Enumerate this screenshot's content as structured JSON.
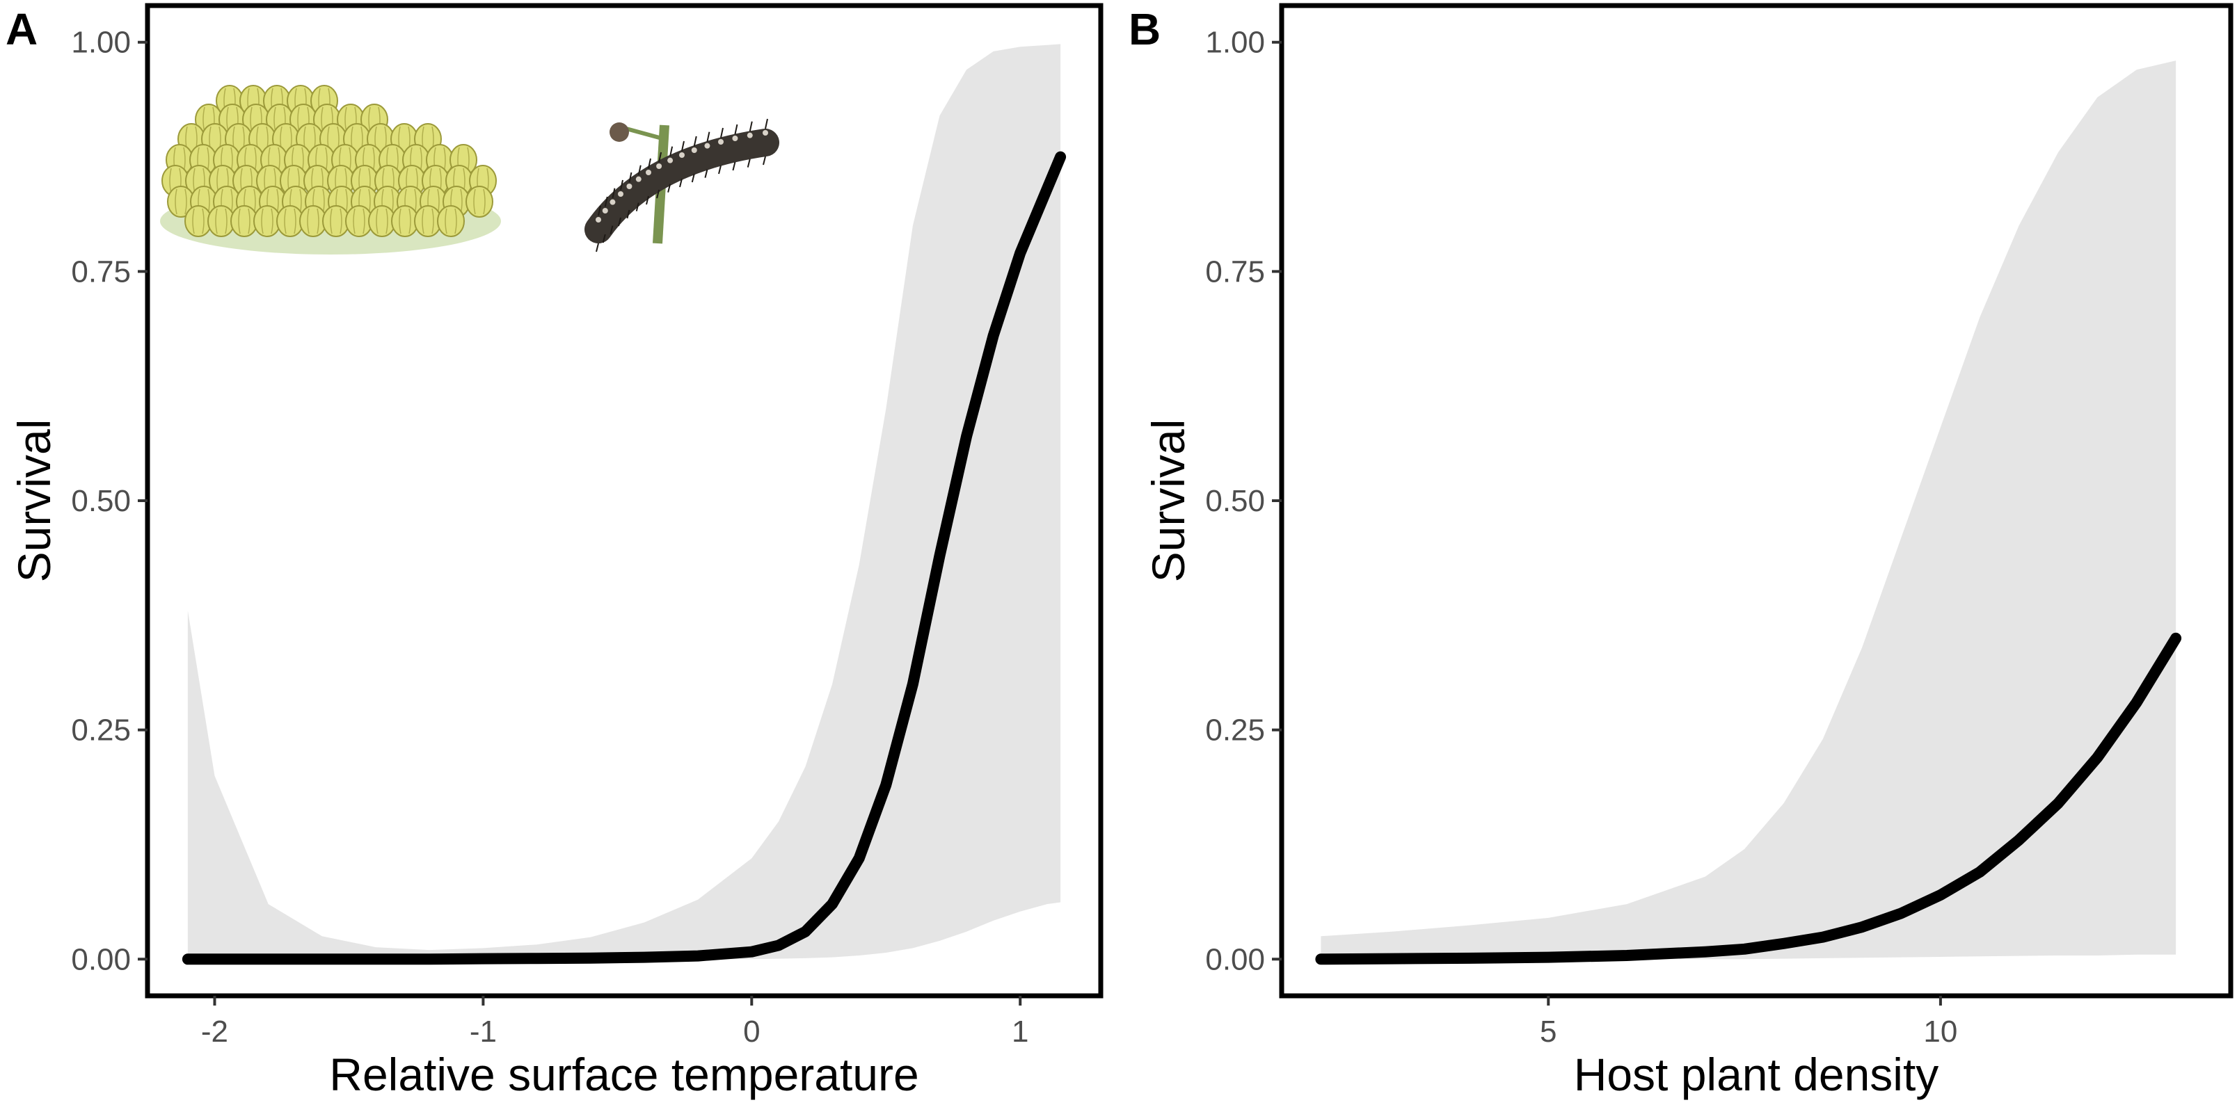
{
  "colors": {
    "curve": "#000000",
    "ribbon": "#e5e5e5",
    "frame": "#000000",
    "tick_text": "#4d4d4d",
    "egg_fill": "#dfe07a",
    "egg_stroke": "#9c9a3a",
    "ground": "#cfe0b0",
    "caterpillar": "#3a3530",
    "stem": "#7a9450"
  },
  "icons": [
    "egg-cluster-illustration",
    "caterpillar-illustration"
  ],
  "chart_data": [
    {
      "type": "line",
      "panel_label": "A",
      "title": "",
      "xlabel": "Relative surface temperature",
      "ylabel": "Survival",
      "xlim": [
        -2.25,
        1.3
      ],
      "ylim": [
        -0.04,
        1.04
      ],
      "x_ticks": [
        -2,
        -1,
        0,
        1
      ],
      "x_tick_labels": [
        "-2",
        "-1",
        "0",
        "1"
      ],
      "y_ticks": [
        0,
        0.25,
        0.5,
        0.75,
        1
      ],
      "y_tick_labels": [
        "0.00",
        "0.25",
        "0.50",
        "0.75",
        "1.00"
      ],
      "grid": false,
      "series": [
        {
          "x": [
            -2.1,
            -2.0,
            -1.8,
            -1.6,
            -1.4,
            -1.2,
            -1.0,
            -0.8,
            -0.6,
            -0.4,
            -0.2,
            0.0,
            0.1,
            0.2,
            0.3,
            0.4,
            0.5,
            0.6,
            0.7,
            0.8,
            0.9,
            1.0,
            1.1,
            1.15
          ],
          "y": [
            0.0,
            0.0,
            0.0,
            0.0,
            0.0,
            0.0,
            0.0005,
            0.0008,
            0.0012,
            0.002,
            0.0035,
            0.008,
            0.015,
            0.03,
            0.06,
            0.11,
            0.19,
            0.3,
            0.44,
            0.57,
            0.68,
            0.77,
            0.84,
            0.875
          ],
          "lower": [
            0.0,
            0.0,
            0.0,
            0.0,
            0.0,
            0.0,
            0.0,
            0.0,
            0.0,
            0.0,
            0.0,
            0.0,
            0.0005,
            0.001,
            0.002,
            0.004,
            0.007,
            0.012,
            0.02,
            0.03,
            0.042,
            0.052,
            0.06,
            0.062
          ],
          "upper": [
            0.38,
            0.2,
            0.06,
            0.025,
            0.013,
            0.01,
            0.012,
            0.016,
            0.024,
            0.04,
            0.065,
            0.11,
            0.15,
            0.21,
            0.3,
            0.43,
            0.6,
            0.8,
            0.92,
            0.97,
            0.99,
            0.995,
            0.997,
            0.998
          ]
        }
      ]
    },
    {
      "type": "line",
      "panel_label": "B",
      "title": "",
      "xlabel": "Host plant density",
      "ylabel": "Survival",
      "xlim": [
        1.6,
        13.7
      ],
      "ylim": [
        -0.04,
        1.04
      ],
      "x_ticks": [
        5,
        10
      ],
      "x_tick_labels": [
        "5",
        "10"
      ],
      "y_ticks": [
        0,
        0.25,
        0.5,
        0.75,
        1
      ],
      "y_tick_labels": [
        "0.00",
        "0.25",
        "0.50",
        "0.75",
        "1.00"
      ],
      "grid": false,
      "series": [
        {
          "x": [
            2.1,
            3.0,
            4.0,
            5.0,
            6.0,
            7.0,
            7.5,
            8.0,
            8.5,
            9.0,
            9.5,
            10.0,
            10.5,
            11.0,
            11.5,
            12.0,
            12.5,
            13.0
          ],
          "y": [
            0.0,
            0.0005,
            0.001,
            0.002,
            0.004,
            0.008,
            0.011,
            0.017,
            0.024,
            0.035,
            0.05,
            0.07,
            0.095,
            0.13,
            0.17,
            0.22,
            0.28,
            0.35
          ],
          "lower": [
            0.0,
            0.0,
            0.0,
            0.0,
            0.0,
            0.0,
            0.0,
            0.0005,
            0.001,
            0.0015,
            0.002,
            0.0025,
            0.003,
            0.0035,
            0.004,
            0.004,
            0.005,
            0.005
          ],
          "upper": [
            0.025,
            0.03,
            0.037,
            0.045,
            0.06,
            0.09,
            0.12,
            0.17,
            0.24,
            0.34,
            0.46,
            0.58,
            0.7,
            0.8,
            0.88,
            0.94,
            0.97,
            0.98
          ]
        }
      ]
    }
  ]
}
